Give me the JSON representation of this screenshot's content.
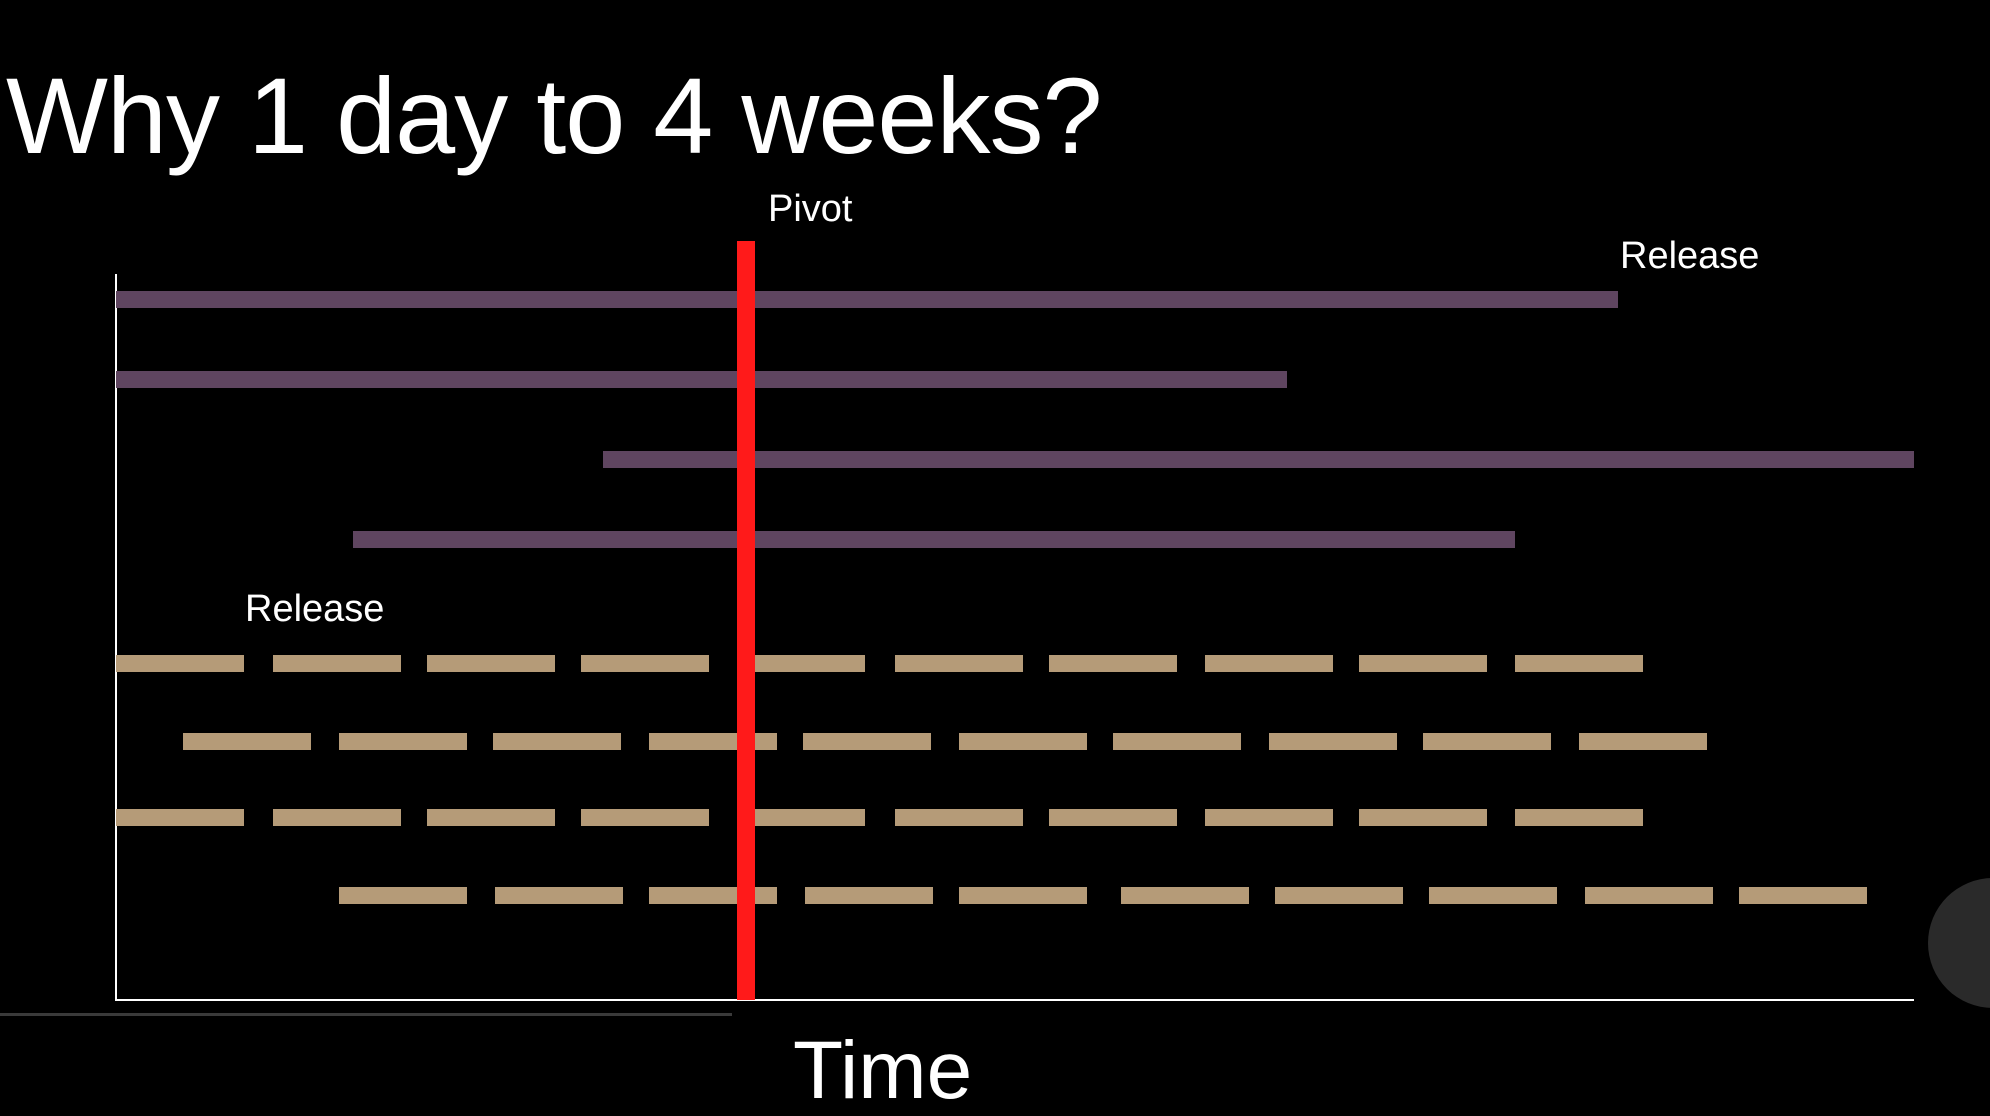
{
  "slide": {
    "title": "Why 1 day to 4 weeks?"
  },
  "diagram": {
    "pivot_label": "Pivot",
    "release_label_top": "Release",
    "release_label_bottom": "Release",
    "x_axis_label": "Time",
    "colors": {
      "long_bar": "#5f4560",
      "short_segment": "#b59b78",
      "pivot_line": "#ff1a1a",
      "axis": "#ffffff",
      "background": "#000000"
    }
  }
}
